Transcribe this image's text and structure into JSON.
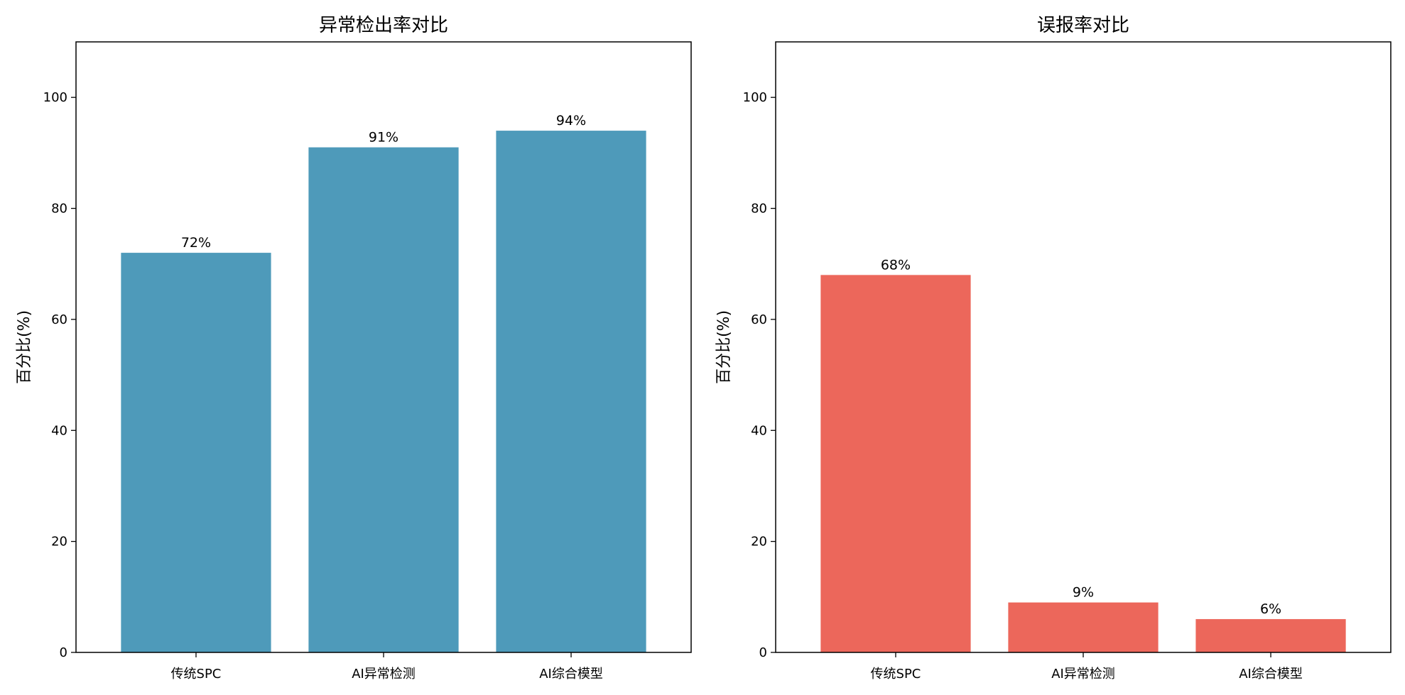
{
  "chart_data": [
    {
      "type": "bar",
      "title": "异常检出率对比",
      "ylabel": "百分比(%)",
      "xlabel": "",
      "categories": [
        "传统SPC",
        "AI异常检测",
        "AI综合模型"
      ],
      "values": [
        72,
        91,
        94
      ],
      "value_labels": [
        "72%",
        "91%",
        "94%"
      ],
      "ylim": [
        0,
        110
      ],
      "yticks": [
        0,
        20,
        40,
        60,
        80,
        100
      ],
      "ytick_labels": [
        "0",
        "20",
        "40",
        "60",
        "80",
        "100"
      ],
      "color": "#4e9aba",
      "grid": false
    },
    {
      "type": "bar",
      "title": "误报率对比",
      "ylabel": "百分比(%)",
      "xlabel": "",
      "categories": [
        "传统SPC",
        "AI异常检测",
        "AI综合模型"
      ],
      "values": [
        68,
        9,
        6
      ],
      "value_labels": [
        "68%",
        "9%",
        "6%"
      ],
      "ylim": [
        0,
        110
      ],
      "yticks": [
        0,
        20,
        40,
        60,
        80,
        100
      ],
      "ytick_labels": [
        "0",
        "20",
        "40",
        "60",
        "80",
        "100"
      ],
      "color": "#ec675b",
      "grid": false
    }
  ]
}
